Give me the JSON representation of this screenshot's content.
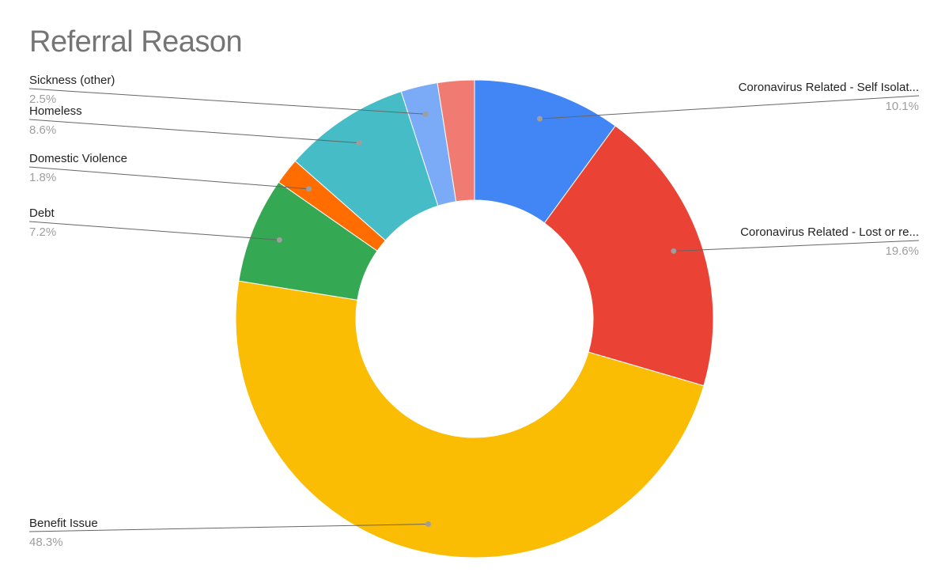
{
  "chart_data": {
    "type": "pie",
    "donut": true,
    "title": "Referral Reason",
    "slices": [
      {
        "label": "Coronavirus Related - Self Isolat...",
        "value": 10.1,
        "value_label": "10.1%",
        "color": "#4285f4"
      },
      {
        "label": "Coronavirus Related - Lost or re...",
        "value": 19.6,
        "value_label": "19.6%",
        "color": "#ea4335"
      },
      {
        "label": "Benefit Issue",
        "value": 48.3,
        "value_label": "48.3%",
        "color": "#fbbc04"
      },
      {
        "label": "Debt",
        "value": 7.2,
        "value_label": "7.2%",
        "color": "#34a853"
      },
      {
        "label": "Domestic Violence",
        "value": 1.8,
        "value_label": "1.8%",
        "color": "#ff6d01"
      },
      {
        "label": "Homeless",
        "value": 8.6,
        "value_label": "8.6%",
        "color": "#46bdc6"
      },
      {
        "label": "Sickness (other)",
        "value": 2.5,
        "value_label": "2.5%",
        "color": "#7baaf7"
      },
      {
        "label": "",
        "value": 2.5,
        "value_label": "",
        "color": "#f07b72"
      }
    ],
    "legend": "leader-line labels"
  }
}
